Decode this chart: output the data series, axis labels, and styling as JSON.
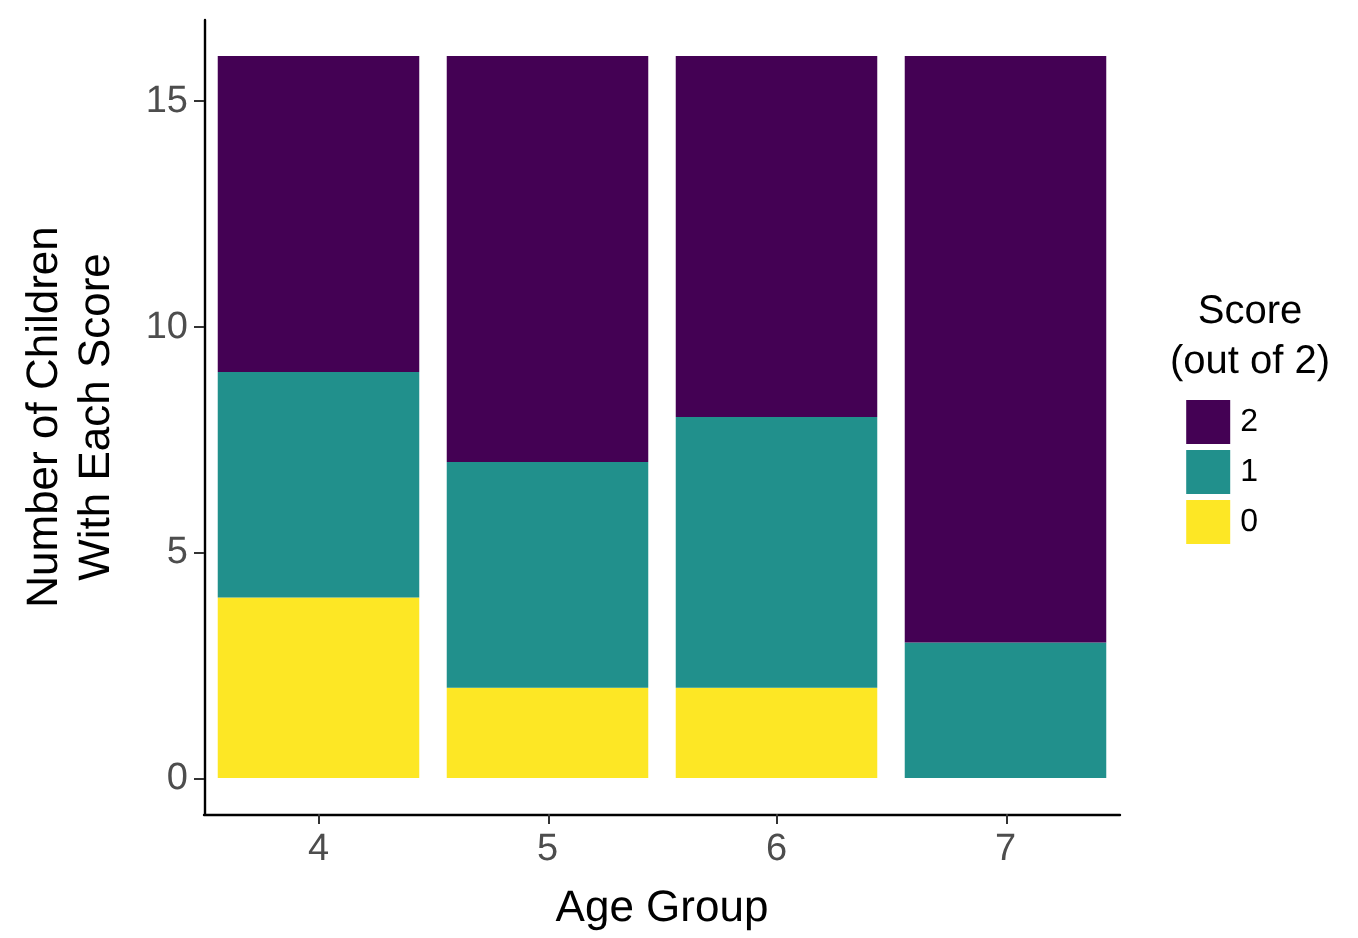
{
  "chart_data": {
    "type": "bar",
    "stacked": true,
    "xlabel": "Age Group",
    "ylabel": "Number of Children\nWith Each Score",
    "legend_title": "Score\n(out of 2)",
    "categories": [
      "4",
      "5",
      "6",
      "7"
    ],
    "series": [
      {
        "name": "0",
        "color": "#fde725",
        "values": [
          4,
          2,
          2,
          0
        ]
      },
      {
        "name": "1",
        "color": "#21908c",
        "values": [
          5,
          5,
          6,
          3
        ]
      },
      {
        "name": "2",
        "color": "#440154",
        "values": [
          7,
          9,
          8,
          13
        ]
      }
    ],
    "ylim": [
      -0.8,
      16.8
    ],
    "yticks": [
      0,
      5,
      10,
      15
    ],
    "grid": false,
    "legend": "right"
  }
}
